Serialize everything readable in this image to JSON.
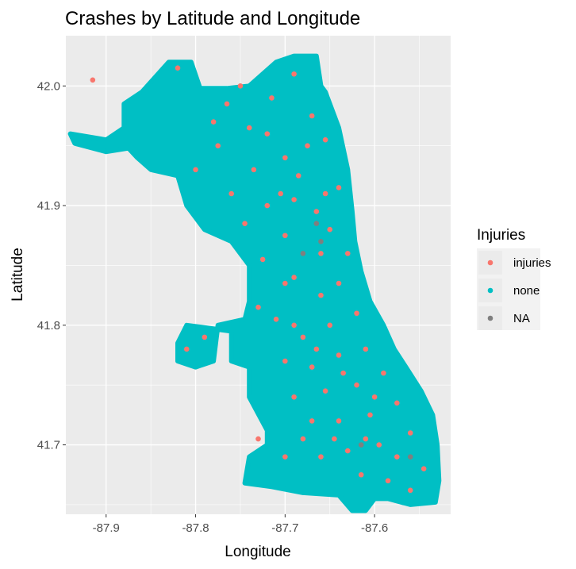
{
  "chart_data": {
    "type": "scatter",
    "title": "Crashes by Latitude and Longitude",
    "xlabel": "Longitude",
    "ylabel": "Latitude",
    "xlim": [
      -87.945,
      -87.515
    ],
    "ylim": [
      41.642,
      42.042
    ],
    "x_ticks": [
      -87.9,
      -87.8,
      -87.7,
      -87.6
    ],
    "x_tick_labels": [
      "-87.9",
      "-87.8",
      "-87.7",
      "-87.6"
    ],
    "y_ticks": [
      41.7,
      41.8,
      41.9,
      42.0
    ],
    "y_tick_labels": [
      "41.7",
      "41.8",
      "41.9",
      "42.0"
    ],
    "grid": true,
    "panel_background": "#ebebeb",
    "legend": {
      "title": "Injuries",
      "position": "right",
      "entries": [
        {
          "label": "injuries",
          "color": "#f8766d"
        },
        {
          "label": "none",
          "color": "#00bfc4"
        },
        {
          "label": "NA",
          "color": "#7f7f7f"
        }
      ]
    },
    "series": [
      {
        "name": "none",
        "color": "#00bfc4",
        "region_outline": [
          [
            -87.94,
            41.96
          ],
          [
            -87.9,
            41.955
          ],
          [
            -87.88,
            41.965
          ],
          [
            -87.88,
            41.985
          ],
          [
            -87.86,
            41.995
          ],
          [
            -87.83,
            42.02
          ],
          [
            -87.805,
            42.02
          ],
          [
            -87.795,
            41.998
          ],
          [
            -87.765,
            41.998
          ],
          [
            -87.74,
            42.0
          ],
          [
            -87.71,
            42.02
          ],
          [
            -87.69,
            42.025
          ],
          [
            -87.665,
            42.025
          ],
          [
            -87.66,
            42.0
          ],
          [
            -87.655,
            41.995
          ],
          [
            -87.64,
            41.965
          ],
          [
            -87.63,
            41.93
          ],
          [
            -87.625,
            41.895
          ],
          [
            -87.622,
            41.87
          ],
          [
            -87.615,
            41.845
          ],
          [
            -87.605,
            41.82
          ],
          [
            -87.59,
            41.8
          ],
          [
            -87.578,
            41.78
          ],
          [
            -87.565,
            41.765
          ],
          [
            -87.548,
            41.745
          ],
          [
            -87.535,
            41.725
          ],
          [
            -87.53,
            41.7
          ],
          [
            -87.528,
            41.67
          ],
          [
            -87.532,
            41.652
          ],
          [
            -87.56,
            41.65
          ],
          [
            -87.585,
            41.655
          ],
          [
            -87.6,
            41.655
          ],
          [
            -87.61,
            41.645
          ],
          [
            -87.625,
            41.645
          ],
          [
            -87.64,
            41.658
          ],
          [
            -87.68,
            41.66
          ],
          [
            -87.715,
            41.665
          ],
          [
            -87.745,
            41.668
          ],
          [
            -87.74,
            41.69
          ],
          [
            -87.72,
            41.7
          ],
          [
            -87.72,
            41.712
          ],
          [
            -87.74,
            41.74
          ],
          [
            -87.74,
            41.765
          ],
          [
            -87.76,
            41.77
          ],
          [
            -87.76,
            41.795
          ],
          [
            -87.81,
            41.8
          ],
          [
            -87.82,
            41.785
          ],
          [
            -87.82,
            41.77
          ],
          [
            -87.8,
            41.765
          ],
          [
            -87.78,
            41.77
          ],
          [
            -87.775,
            41.8
          ],
          [
            -87.745,
            41.805
          ],
          [
            -87.74,
            41.82
          ],
          [
            -87.74,
            41.85
          ],
          [
            -87.76,
            41.87
          ],
          [
            -87.79,
            41.88
          ],
          [
            -87.81,
            41.9
          ],
          [
            -87.82,
            41.925
          ],
          [
            -87.85,
            41.93
          ],
          [
            -87.865,
            41.94
          ],
          [
            -87.875,
            41.948
          ],
          [
            -87.9,
            41.945
          ],
          [
            -87.935,
            41.952
          ]
        ]
      },
      {
        "name": "injuries",
        "color": "#f8766d",
        "points": [
          [
            -87.915,
            42.005
          ],
          [
            -87.82,
            42.015
          ],
          [
            -87.765,
            41.985
          ],
          [
            -87.74,
            41.965
          ],
          [
            -87.715,
            41.99
          ],
          [
            -87.69,
            42.01
          ],
          [
            -87.67,
            41.975
          ],
          [
            -87.655,
            41.955
          ],
          [
            -87.7,
            41.94
          ],
          [
            -87.735,
            41.93
          ],
          [
            -87.775,
            41.95
          ],
          [
            -87.8,
            41.93
          ],
          [
            -87.76,
            41.91
          ],
          [
            -87.72,
            41.9
          ],
          [
            -87.69,
            41.905
          ],
          [
            -87.665,
            41.895
          ],
          [
            -87.65,
            41.88
          ],
          [
            -87.64,
            41.915
          ],
          [
            -87.63,
            41.86
          ],
          [
            -87.66,
            41.86
          ],
          [
            -87.7,
            41.875
          ],
          [
            -87.745,
            41.885
          ],
          [
            -87.725,
            41.855
          ],
          [
            -87.69,
            41.84
          ],
          [
            -87.66,
            41.825
          ],
          [
            -87.64,
            41.835
          ],
          [
            -87.62,
            41.81
          ],
          [
            -87.65,
            41.8
          ],
          [
            -87.68,
            41.79
          ],
          [
            -87.71,
            41.805
          ],
          [
            -87.7,
            41.77
          ],
          [
            -87.67,
            41.765
          ],
          [
            -87.64,
            41.775
          ],
          [
            -87.61,
            41.78
          ],
          [
            -87.59,
            41.76
          ],
          [
            -87.62,
            41.75
          ],
          [
            -87.655,
            41.745
          ],
          [
            -87.69,
            41.74
          ],
          [
            -87.67,
            41.72
          ],
          [
            -87.64,
            41.72
          ],
          [
            -87.605,
            41.725
          ],
          [
            -87.575,
            41.735
          ],
          [
            -87.56,
            41.71
          ],
          [
            -87.595,
            41.7
          ],
          [
            -87.63,
            41.695
          ],
          [
            -87.66,
            41.69
          ],
          [
            -87.7,
            41.69
          ],
          [
            -87.73,
            41.705
          ],
          [
            -87.615,
            41.675
          ],
          [
            -87.585,
            41.67
          ],
          [
            -87.56,
            41.662
          ],
          [
            -87.575,
            41.69
          ],
          [
            -87.545,
            41.68
          ],
          [
            -87.79,
            41.79
          ],
          [
            -87.81,
            41.78
          ],
          [
            -87.7,
            41.835
          ],
          [
            -87.675,
            41.95
          ],
          [
            -87.72,
            41.96
          ],
          [
            -87.75,
            42.0
          ],
          [
            -87.78,
            41.97
          ],
          [
            -87.685,
            41.925
          ],
          [
            -87.655,
            41.91
          ],
          [
            -87.705,
            41.91
          ],
          [
            -87.73,
            41.815
          ],
          [
            -87.69,
            41.8
          ],
          [
            -87.665,
            41.78
          ],
          [
            -87.635,
            41.76
          ],
          [
            -87.6,
            41.74
          ],
          [
            -87.645,
            41.705
          ],
          [
            -87.61,
            41.705
          ],
          [
            -87.68,
            41.705
          ]
        ]
      },
      {
        "name": "NA",
        "color": "#7f7f7f",
        "points": [
          [
            -87.665,
            41.885
          ],
          [
            -87.68,
            41.86
          ],
          [
            -87.66,
            41.87
          ],
          [
            -87.615,
            41.7
          ],
          [
            -87.56,
            41.69
          ]
        ]
      }
    ]
  }
}
